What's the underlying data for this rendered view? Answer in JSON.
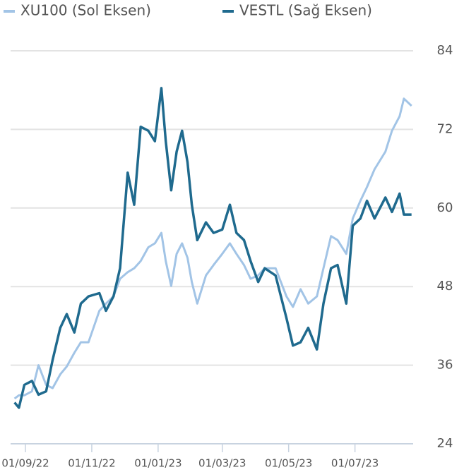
{
  "chart_data": {
    "type": "line",
    "x": [
      "22/08/22",
      "26/08/22",
      "31/08/22",
      "07/09/22",
      "13/09/22",
      "20/09/22",
      "26/09/22",
      "03/10/22",
      "09/10/22",
      "16/10/22",
      "22/10/22",
      "29/10/22",
      "08/11/22",
      "14/11/22",
      "21/11/22",
      "27/11/22",
      "04/12/22",
      "10/12/22",
      "16/12/22",
      "23/12/22",
      "29/12/22",
      "04/01/23",
      "08/01/23",
      "13/01/23",
      "18/01/23",
      "23/01/23",
      "28/01/23",
      "01/02/23",
      "06/02/23",
      "14/02/23",
      "21/02/23",
      "01/03/23",
      "08/03/23",
      "14/03/23",
      "21/03/23",
      "27/03/23",
      "03/04/23",
      "09/04/23",
      "19/04/23",
      "29/04/23",
      "05/05/23",
      "12/05/23",
      "19/05/23",
      "27/05/23",
      "02/06/23",
      "09/06/23",
      "15/06/23",
      "23/06/23",
      "29/06/23",
      "06/07/23",
      "12/07/23",
      "19/07/23",
      "29/07/23",
      "04/08/23",
      "11/08/23",
      "15/08/23",
      "22/08/23"
    ],
    "series": [
      {
        "name": "XU100 (Sol Eksen)",
        "color": "#a2c4e6",
        "values": [
          30.9,
          31.4,
          31.4,
          32,
          36,
          33,
          32.5,
          34.6,
          35.8,
          37.9,
          39.5,
          39.5,
          44.3,
          45.4,
          46.5,
          49.2,
          50.2,
          50.8,
          51.9,
          54,
          54.6,
          56.2,
          51.9,
          48.1,
          53,
          54.6,
          52.4,
          48.7,
          45.4,
          49.7,
          51.3,
          53,
          54.6,
          53,
          51.3,
          49.2,
          49.7,
          50.8,
          50.8,
          46.5,
          44.9,
          47.6,
          45.4,
          46.5,
          50.8,
          55.7,
          55.1,
          53,
          58.4,
          61.1,
          63.2,
          65.9,
          68.6,
          71.8,
          74,
          76.7,
          75.6
        ]
      },
      {
        "name": "VESTL (Sağ Eksen)",
        "color": "#1f6a8e",
        "values": [
          30.3,
          29.5,
          33,
          33.6,
          31.5,
          32,
          36.8,
          41.7,
          43.8,
          41,
          45.4,
          46.5,
          47,
          44.3,
          46.5,
          50.8,
          65.4,
          60.5,
          72.4,
          71.8,
          70.2,
          78.3,
          70.2,
          62.7,
          68.6,
          71.8,
          67,
          60.5,
          55.1,
          57.8,
          56.2,
          56.7,
          60.5,
          56.2,
          55.1,
          51.9,
          48.7,
          50.8,
          49.7,
          43.2,
          39,
          39.5,
          41.7,
          38.4,
          45.4,
          50.8,
          51.3,
          45.4,
          57.3,
          58.4,
          61.1,
          58.4,
          61.6,
          59.4,
          62.2,
          59,
          59
        ]
      }
    ],
    "xticks": [
      "01/09/22",
      "01/11/22",
      "01/01/23",
      "01/03/23",
      "01/05/23",
      "01/07/23"
    ],
    "ylim": [
      24,
      84
    ],
    "yticks": [
      24,
      36,
      48,
      60,
      72,
      84
    ],
    "grid": true
  }
}
